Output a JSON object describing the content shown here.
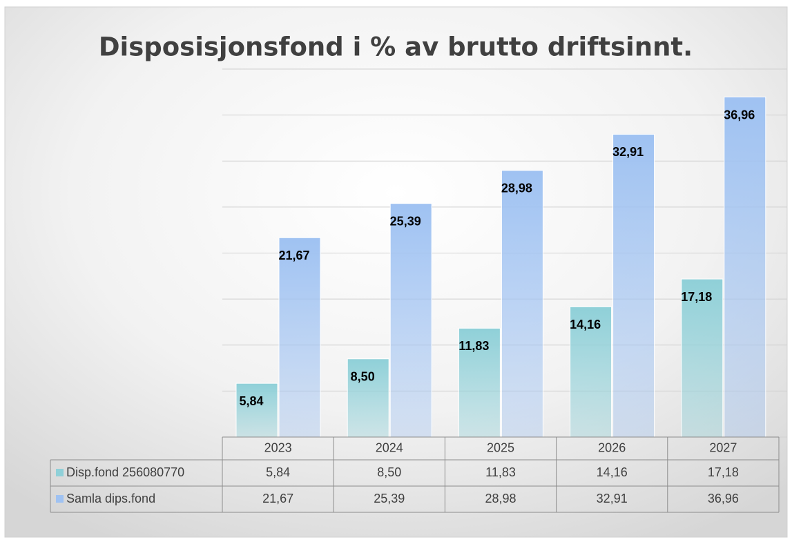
{
  "chart_data": {
    "type": "bar",
    "title": "Disposisjonsfond i % av brutto driftsinnt.",
    "categories": [
      "2023",
      "2024",
      "2025",
      "2026",
      "2027"
    ],
    "series": [
      {
        "name": "Disp.fond 256080770",
        "color": "#8fd0d8",
        "values": [
          5.84,
          8.5,
          11.83,
          14.16,
          17.18
        ],
        "value_labels": [
          "5,84",
          "8,50",
          "11,83",
          "14,16",
          "17,18"
        ]
      },
      {
        "name": "Samla dips.fond",
        "color": "#9fc2f2",
        "values": [
          21.67,
          25.39,
          28.98,
          32.91,
          36.96
        ],
        "value_labels": [
          "21,67",
          "25,39",
          "28,98",
          "32,91",
          "36,96"
        ]
      }
    ],
    "ylim": [
      0,
      40
    ],
    "yticks": [
      0,
      5,
      10,
      15,
      20,
      25,
      30,
      35,
      40
    ],
    "grid": true,
    "data_table": true
  }
}
